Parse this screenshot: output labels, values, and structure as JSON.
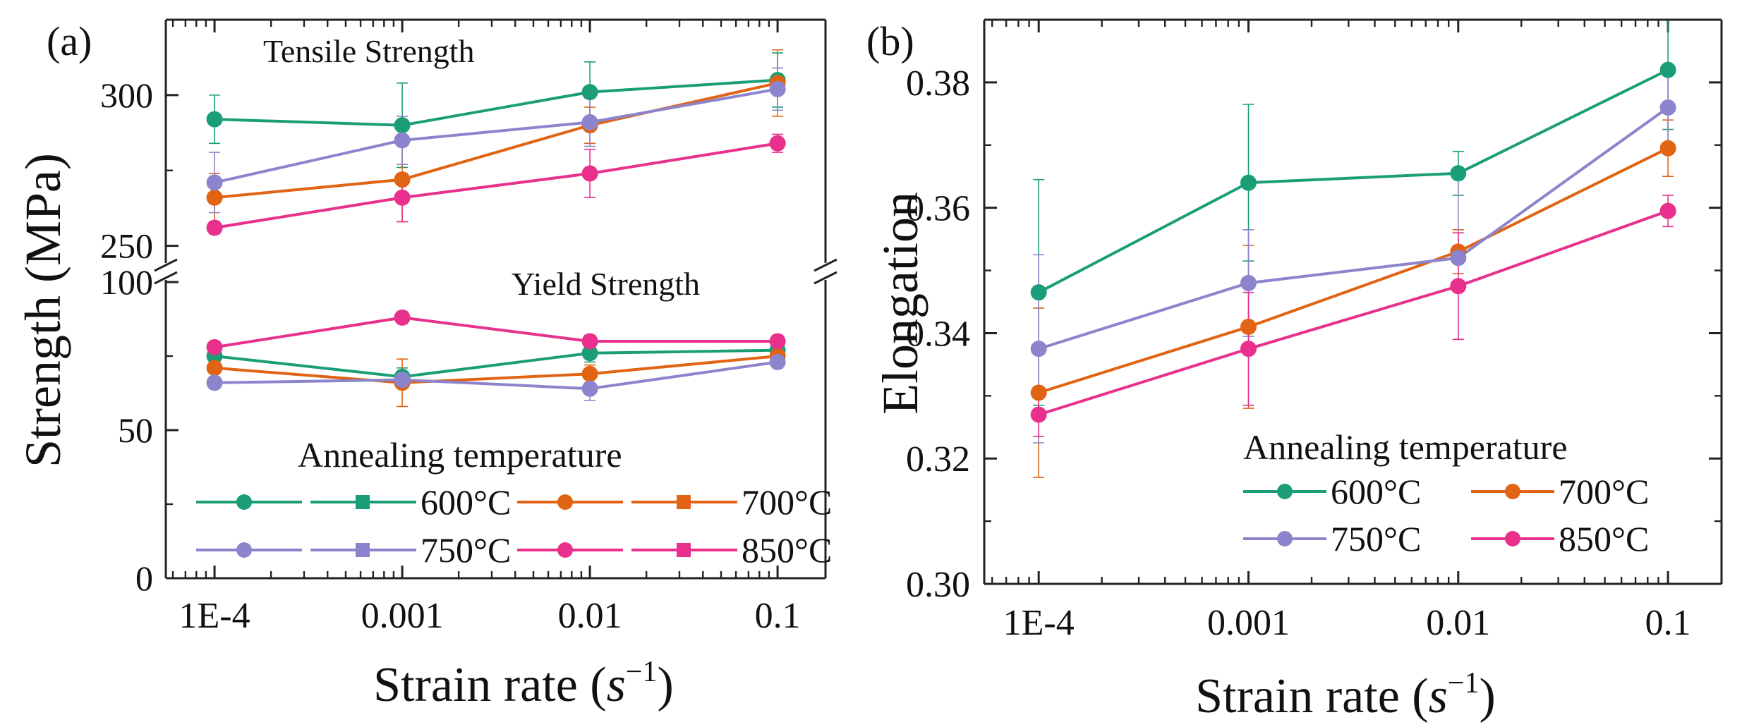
{
  "chart_data": [
    {
      "panel_label": "(a)",
      "type": "line",
      "xscale": "log",
      "x_categories": [
        "1E-4",
        "0.001",
        "0.01",
        "0.1"
      ],
      "x_values": [
        0.0001,
        0.001,
        0.01,
        0.1
      ],
      "xlabel_main": "Strain rate (",
      "xlabel_symbol": "s",
      "xlabel_exponent": "−1",
      "xlabel_close": ")",
      "ylabel": "Strength (MPa)",
      "broken_y_axis": true,
      "ylim_lower": [
        0,
        100
      ],
      "ylim_upper": [
        245,
        325
      ],
      "yticks_lower": [
        0,
        50,
        100
      ],
      "yticks_upper": [
        250,
        300
      ],
      "annotations": {
        "tensile": "Tensile Strength",
        "yield": "Yield Strength"
      },
      "legend_title": "Annealing temperature",
      "legend_entries": [
        "600°C",
        "700°C",
        "750°C",
        "850°C"
      ],
      "series": [
        {
          "temperature": "600°C",
          "color": "#1b9e77",
          "tensile": [
            292,
            290,
            301,
            305
          ],
          "tensile_err": [
            8,
            14,
            10,
            9
          ],
          "yield": [
            75,
            68,
            76,
            77
          ],
          "yield_err": [
            3,
            3,
            3,
            2
          ]
        },
        {
          "temperature": "700°C",
          "color": "#e06414",
          "tensile": [
            266,
            272,
            290,
            304
          ],
          "tensile_err": [
            8,
            14,
            6,
            11
          ],
          "yield": [
            71,
            66,
            69,
            75
          ],
          "yield_err": [
            3,
            8,
            3,
            2
          ]
        },
        {
          "temperature": "750°C",
          "color": "#8c84cc",
          "tensile": [
            271,
            285,
            291,
            302
          ],
          "tensile_err": [
            10,
            8,
            8,
            7
          ],
          "yield": [
            66,
            67,
            64,
            73
          ],
          "yield_err": [
            2,
            2,
            4,
            2
          ]
        },
        {
          "temperature": "850°C",
          "color": "#e8308c",
          "tensile": [
            256,
            266,
            274,
            284
          ],
          "tensile_err": [
            2,
            8,
            8,
            3
          ],
          "yield": [
            78,
            88,
            80,
            80
          ],
          "yield_err": [
            2,
            2,
            2,
            2
          ]
        }
      ]
    },
    {
      "panel_label": "(b)",
      "type": "line",
      "xscale": "log",
      "x_categories": [
        "1E-4",
        "0.001",
        "0.01",
        "0.1"
      ],
      "x_values": [
        0.0001,
        0.001,
        0.01,
        0.1
      ],
      "xlabel_main": "Strain rate (",
      "xlabel_symbol": "s",
      "xlabel_exponent": "−1",
      "xlabel_close": ")",
      "ylabel": "Elongation",
      "ylim": [
        0.3,
        0.39
      ],
      "yticks": [
        "0.30",
        "0.32",
        "0.34",
        "0.36",
        "0.38"
      ],
      "ytick_values": [
        0.3,
        0.32,
        0.34,
        0.36,
        0.38
      ],
      "legend_title": "Annealing temperature",
      "legend_entries": [
        "600°C",
        "700°C",
        "750°C",
        "850°C"
      ],
      "series": [
        {
          "name": "600°C",
          "color": "#1b9e77",
          "values": [
            0.3465,
            0.364,
            0.3655,
            0.382
          ],
          "err": [
            0.018,
            0.0125,
            0.0035,
            0.0095
          ]
        },
        {
          "name": "700°C",
          "color": "#e06414",
          "values": [
            0.3305,
            0.341,
            0.353,
            0.3695
          ],
          "err": [
            0.0135,
            0.013,
            0.0035,
            0.0045
          ]
        },
        {
          "name": "750°C",
          "color": "#8c84cc",
          "values": [
            0.3375,
            0.348,
            0.352,
            0.376
          ],
          "err": [
            0.015,
            0.0085,
            0.013,
            0.0065
          ]
        },
        {
          "name": "850°C",
          "color": "#e8308c",
          "values": [
            0.327,
            0.3375,
            0.3475,
            0.3595
          ],
          "err": [
            0.0035,
            0.009,
            0.0085,
            0.0025
          ]
        }
      ]
    }
  ]
}
